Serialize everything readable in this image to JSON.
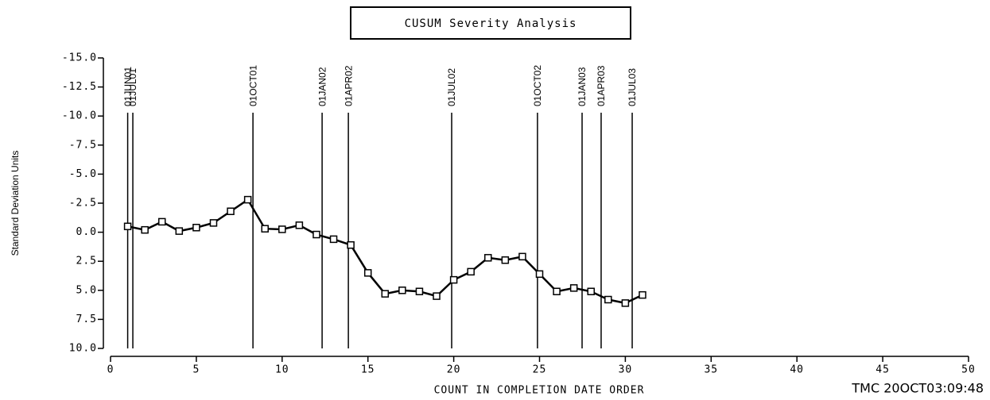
{
  "chart_data": {
    "type": "line",
    "title": "CUSUM Severity Analysis",
    "ylabel": "Standard Deviation Units",
    "xlabel": "COUNT IN COMPLETION DATE ORDER",
    "footnote": "TMC  20OCT03:09:48",
    "x": [
      1,
      2,
      3,
      4,
      5,
      6,
      7,
      8,
      9,
      10,
      11,
      12,
      13,
      14,
      15,
      16,
      17,
      18,
      19,
      20,
      21,
      22,
      23,
      24,
      25,
      26,
      27,
      28,
      29,
      30,
      31
    ],
    "series": [
      {
        "name": "CUSUM",
        "color": "#000000",
        "values": [
          -0.5,
          -0.2,
          -0.9,
          -0.1,
          -0.4,
          -0.8,
          -1.8,
          -2.8,
          -0.3,
          -0.25,
          -0.6,
          0.2,
          0.6,
          1.1,
          3.5,
          5.3,
          5.0,
          5.1,
          5.5,
          4.1,
          3.4,
          2.2,
          2.4,
          2.1,
          3.6,
          5.1,
          4.8,
          5.1,
          5.8,
          6.1,
          5.4
        ]
      }
    ],
    "xlim": [
      0,
      50
    ],
    "xticks": [
      0,
      5,
      10,
      15,
      20,
      25,
      30,
      35,
      40,
      45,
      50
    ],
    "ylim": [
      10,
      -15
    ],
    "yticks": [
      {
        "value": -15,
        "label": "-15.0"
      },
      {
        "value": -12.5,
        "label": "-12.5"
      },
      {
        "value": -10,
        "label": "-10.0"
      },
      {
        "value": -7.5,
        "label": "-7.5"
      },
      {
        "value": -5,
        "label": "-5.0"
      },
      {
        "value": -2.5,
        "label": "-2.5"
      },
      {
        "value": 0,
        "label": "0.0"
      },
      {
        "value": 2.5,
        "label": "2.5"
      },
      {
        "value": 5,
        "label": "5.0"
      },
      {
        "value": 7.5,
        "label": "7.5"
      },
      {
        "value": 10,
        "label": "10.0"
      }
    ],
    "reference_lines": [
      {
        "x": 1.0,
        "label": "01JUN01"
      },
      {
        "x": 1.3,
        "label": "01JUL01"
      },
      {
        "x": 8.3,
        "label": "01OCT01"
      },
      {
        "x": 12.33,
        "label": "01JAN02"
      },
      {
        "x": 13.86,
        "label": "01APR02"
      },
      {
        "x": 19.88,
        "label": "01JUL02"
      },
      {
        "x": 24.88,
        "label": "01OCT02"
      },
      {
        "x": 27.48,
        "label": "01JAN03"
      },
      {
        "x": 28.59,
        "label": "01APR03"
      },
      {
        "x": 30.4,
        "label": "01JUL03"
      }
    ]
  }
}
